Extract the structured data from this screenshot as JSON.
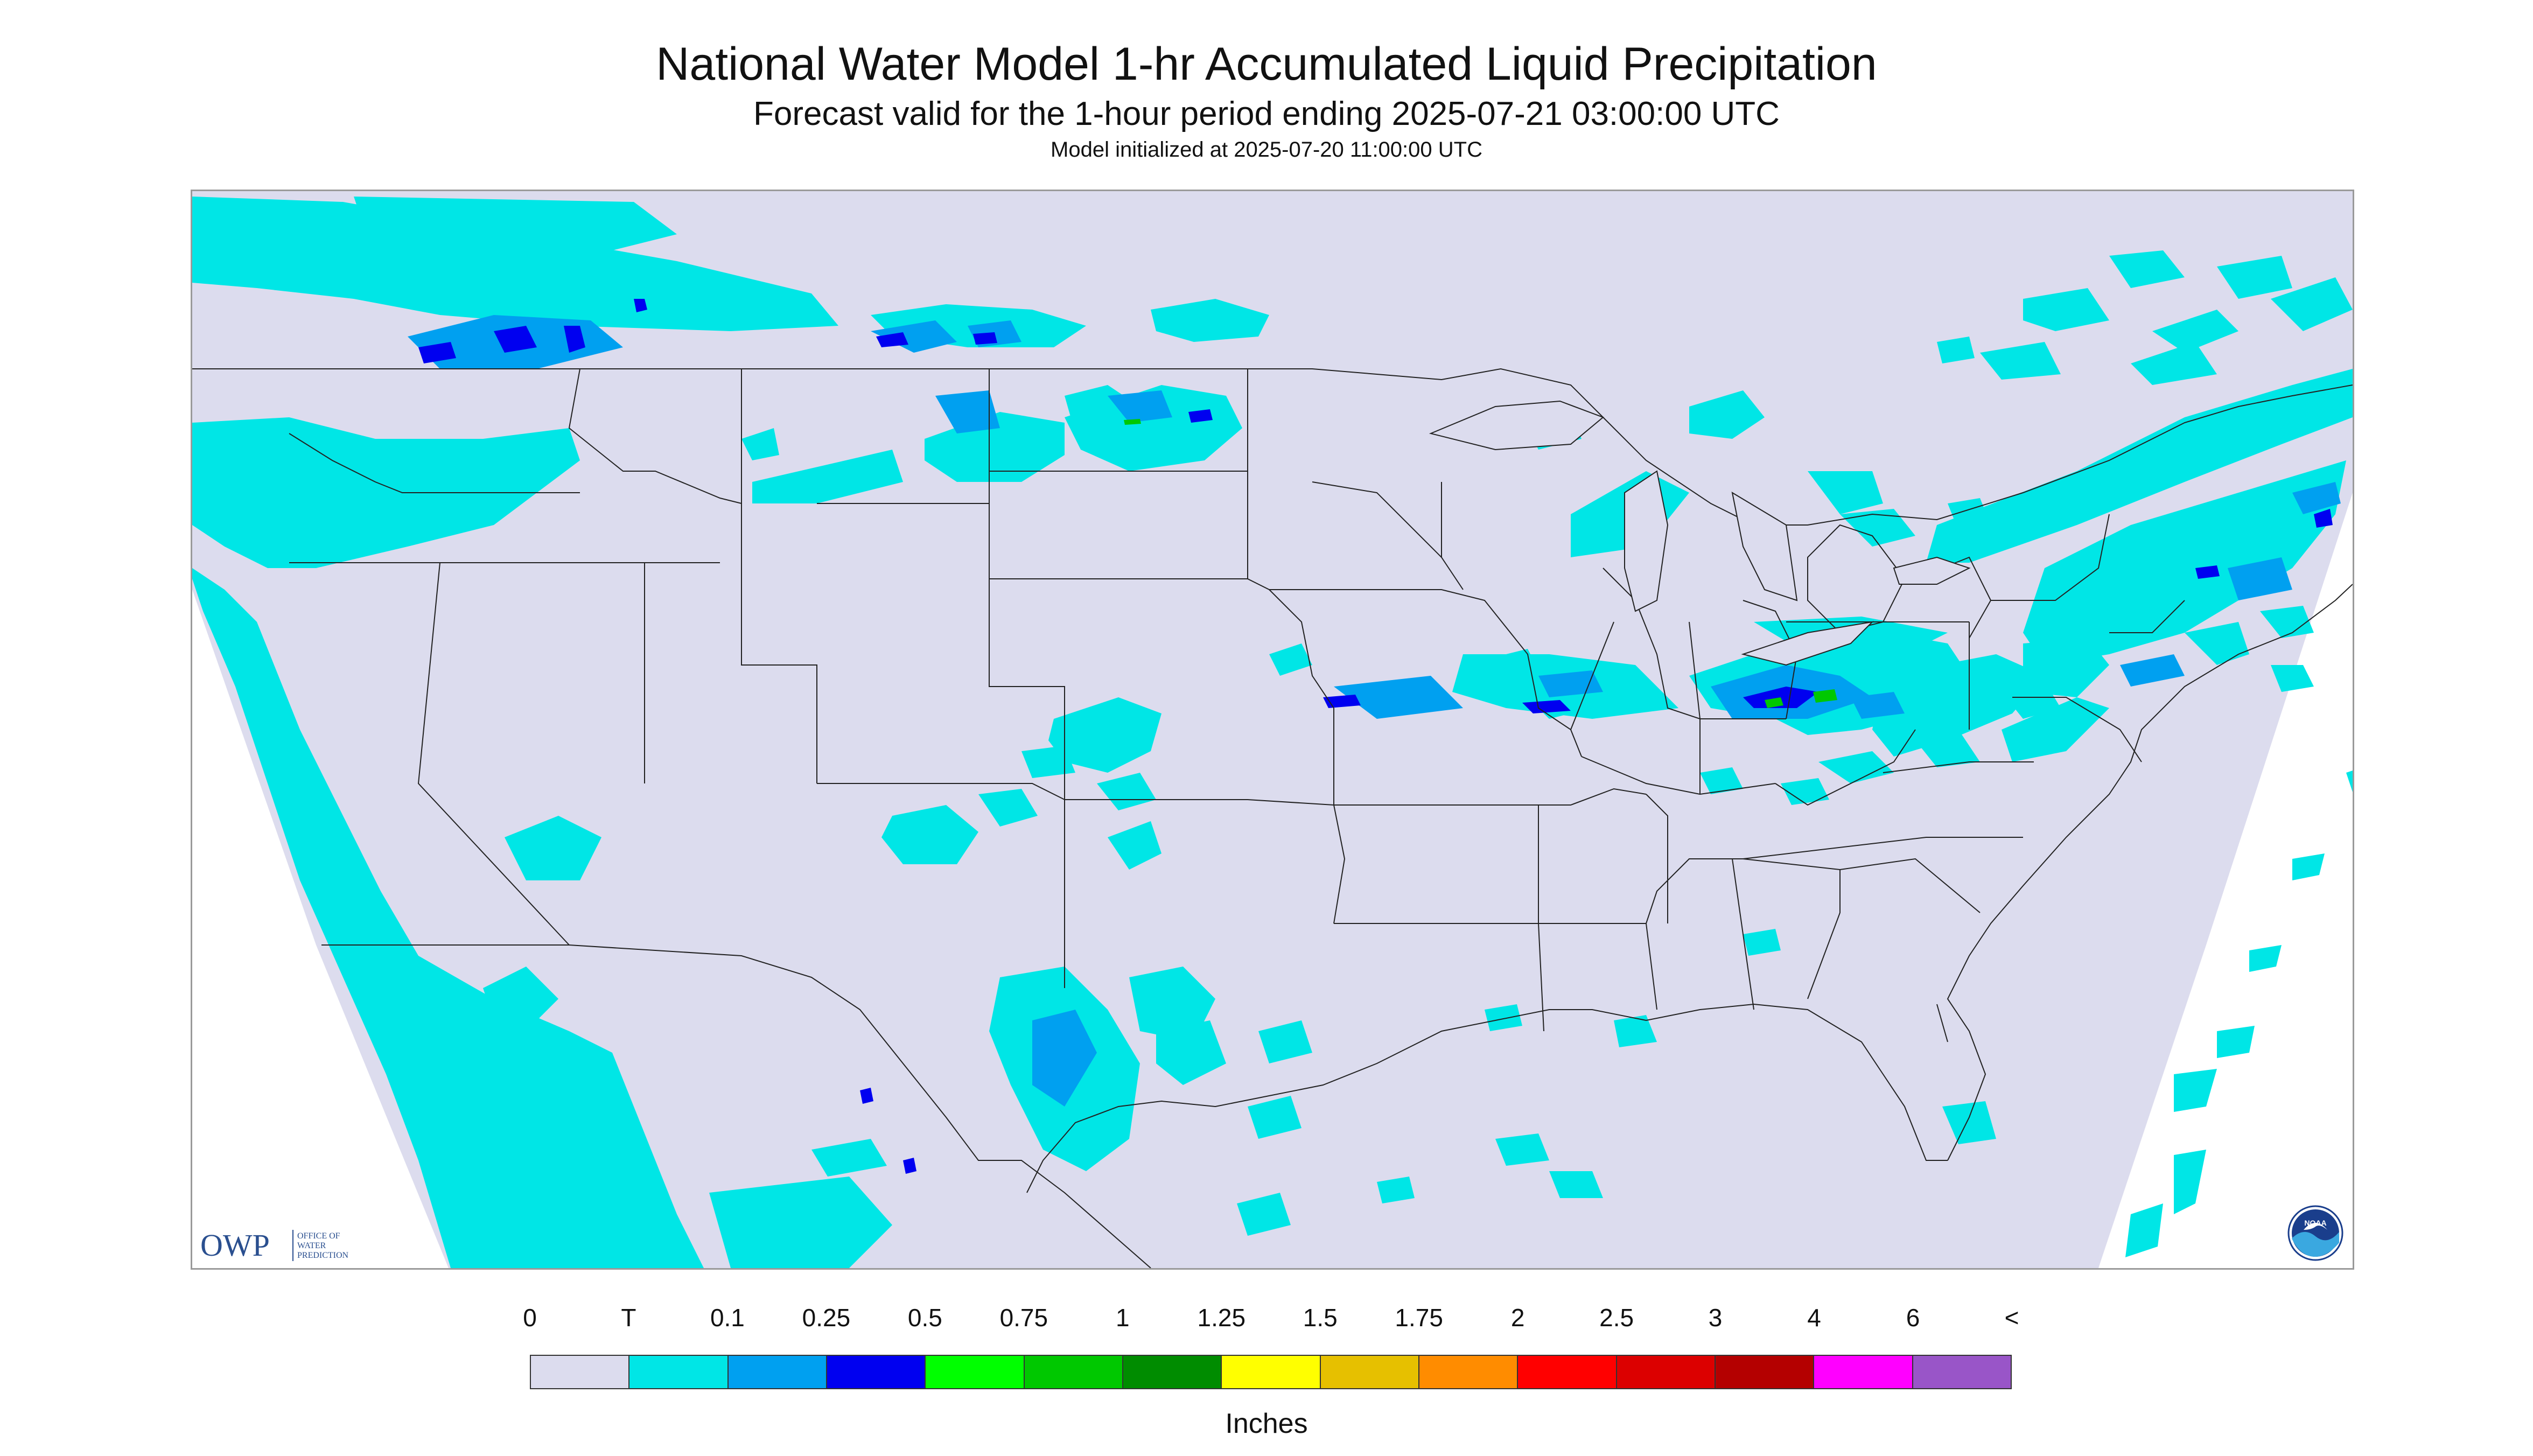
{
  "header": {
    "title": "National Water Model 1-hr Accumulated Liquid Precipitation",
    "subtitle": "Forecast valid for the 1-hour period ending 2025-07-21 03:00:00 UTC",
    "init": "Model initialized at 2025-07-20 11:00:00 UTC"
  },
  "map": {
    "background_color": "#dcdcee",
    "outside_color": "#ffffff",
    "border_color": "#222222",
    "precip_colors": {
      "trace": "#00e6e6",
      "light": "#00a0f0",
      "moderate": "#0000f0",
      "heavy": "#00c800"
    }
  },
  "logos": {
    "owp": {
      "mark": "OWP",
      "line1": "OFFICE OF",
      "line2": "WATER",
      "line3": "PREDICTION"
    },
    "noaa": {
      "mark": "NOAA"
    }
  },
  "legend": {
    "labels": [
      "0",
      "T",
      "0.1",
      "0.25",
      "0.5",
      "0.75",
      "1",
      "1.25",
      "1.5",
      "1.75",
      "2",
      "2.5",
      "3",
      "4",
      "6",
      "<"
    ],
    "colors": [
      "#dcdcee",
      "#00e6e6",
      "#00a0f0",
      "#0000f0",
      "#00ff00",
      "#00c800",
      "#008c00",
      "#ffff00",
      "#e6c000",
      "#ff8c00",
      "#ff0000",
      "#dc0000",
      "#b40000",
      "#ff00ff",
      "#9955c8"
    ],
    "units": "Inches"
  }
}
